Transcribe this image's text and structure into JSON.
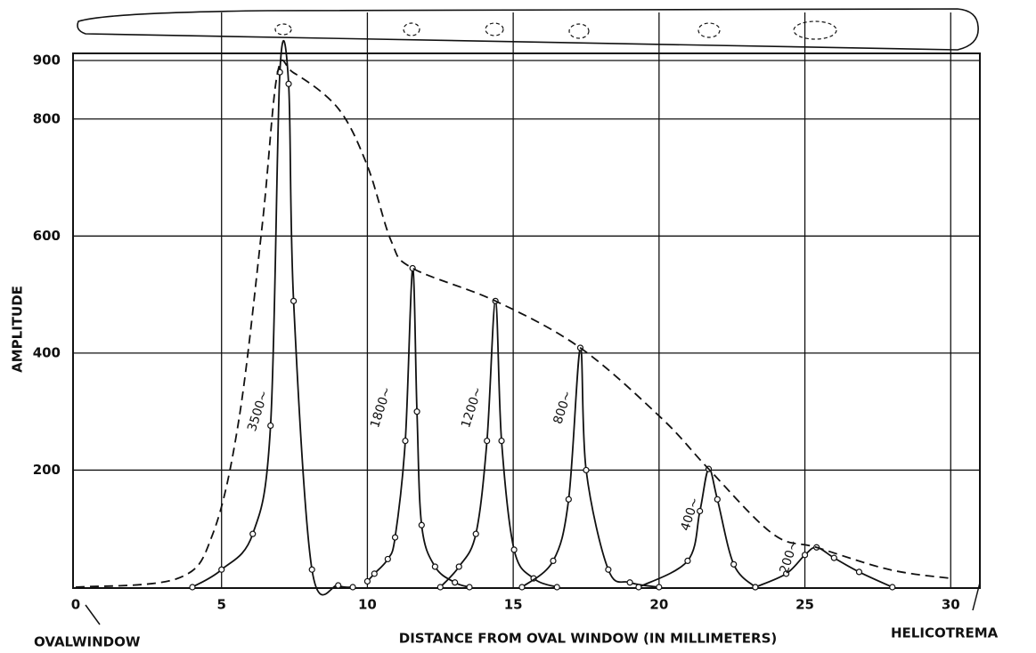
{
  "chart_data": {
    "type": "line",
    "x_label": "DISTANCE FROM OVAL WINDOW (IN MILLIMETERS)",
    "y_label": "AMPLITUDE",
    "annotations": [
      "OVALWINDOW",
      "HELICOTREMA"
    ],
    "xlim": [
      0,
      31
    ],
    "ylim": [
      0,
      900
    ],
    "xticks": [
      0,
      5,
      10,
      15,
      20,
      25,
      30
    ],
    "yticks": [
      200,
      400,
      600,
      800,
      900
    ],
    "grid": true,
    "series": [
      {
        "name": "3500~",
        "color": "#111111",
        "style": "solid",
        "x": [
          4.0,
          5.0,
          6.07,
          6.68,
          7.0,
          7.3,
          7.47,
          8.1,
          9.0,
          9.5
        ],
        "values": [
          0,
          30,
          91,
          276,
          880,
          860,
          489,
          30,
          3,
          0
        ]
      },
      {
        "name": "1800~",
        "color": "#111111",
        "style": "solid",
        "x": [
          10.0,
          10.24,
          10.7,
          10.95,
          11.3,
          11.55,
          11.7,
          11.86,
          12.32,
          13.0,
          13.5
        ],
        "values": [
          10,
          23,
          48,
          85,
          250,
          545,
          300,
          106,
          35,
          8,
          0
        ]
      },
      {
        "name": "1200~",
        "color": "#111111",
        "style": "solid",
        "x": [
          12.5,
          13.14,
          13.72,
          14.1,
          14.39,
          14.6,
          15.03,
          15.7,
          16.5
        ],
        "values": [
          0,
          35,
          91,
          250,
          489,
          250,
          64,
          15,
          0
        ]
      },
      {
        "name": "800~",
        "color": "#111111",
        "style": "solid",
        "x": [
          15.3,
          16.37,
          16.9,
          17.3,
          17.5,
          18.26,
          19.0,
          20.0
        ],
        "values": [
          0,
          45,
          150,
          409,
          200,
          30,
          8,
          0
        ]
      },
      {
        "name": "400~",
        "color": "#111111",
        "style": "solid",
        "x": [
          19.3,
          20.98,
          21.4,
          21.7,
          22.0,
          22.56,
          23.3
        ],
        "values": [
          0,
          45,
          130,
          202,
          150,
          39,
          0
        ]
      },
      {
        "name": "200~",
        "color": "#111111",
        "style": "solid",
        "x": [
          23.3,
          24.36,
          25.0,
          25.4,
          26.0,
          26.86,
          28.0
        ],
        "values": [
          0,
          23,
          55,
          68,
          50,
          26,
          0
        ]
      },
      {
        "color": "#111111",
        "style": "dashed",
        "x": [
          0,
          3.5,
          4.7,
          5.6,
          6.4,
          6.92,
          7.47,
          9.0,
          10.0,
          10.82,
          11.55,
          14.39,
          17.3,
          20.1,
          21.7,
          23.9,
          25.4,
          27.9,
          30.0
        ],
        "values": [
          0,
          15,
          91,
          288,
          621,
          879,
          879,
          818,
          720,
          591,
          545,
          489,
          409,
          288,
          202,
          91,
          68,
          30,
          15
        ]
      }
    ]
  }
}
